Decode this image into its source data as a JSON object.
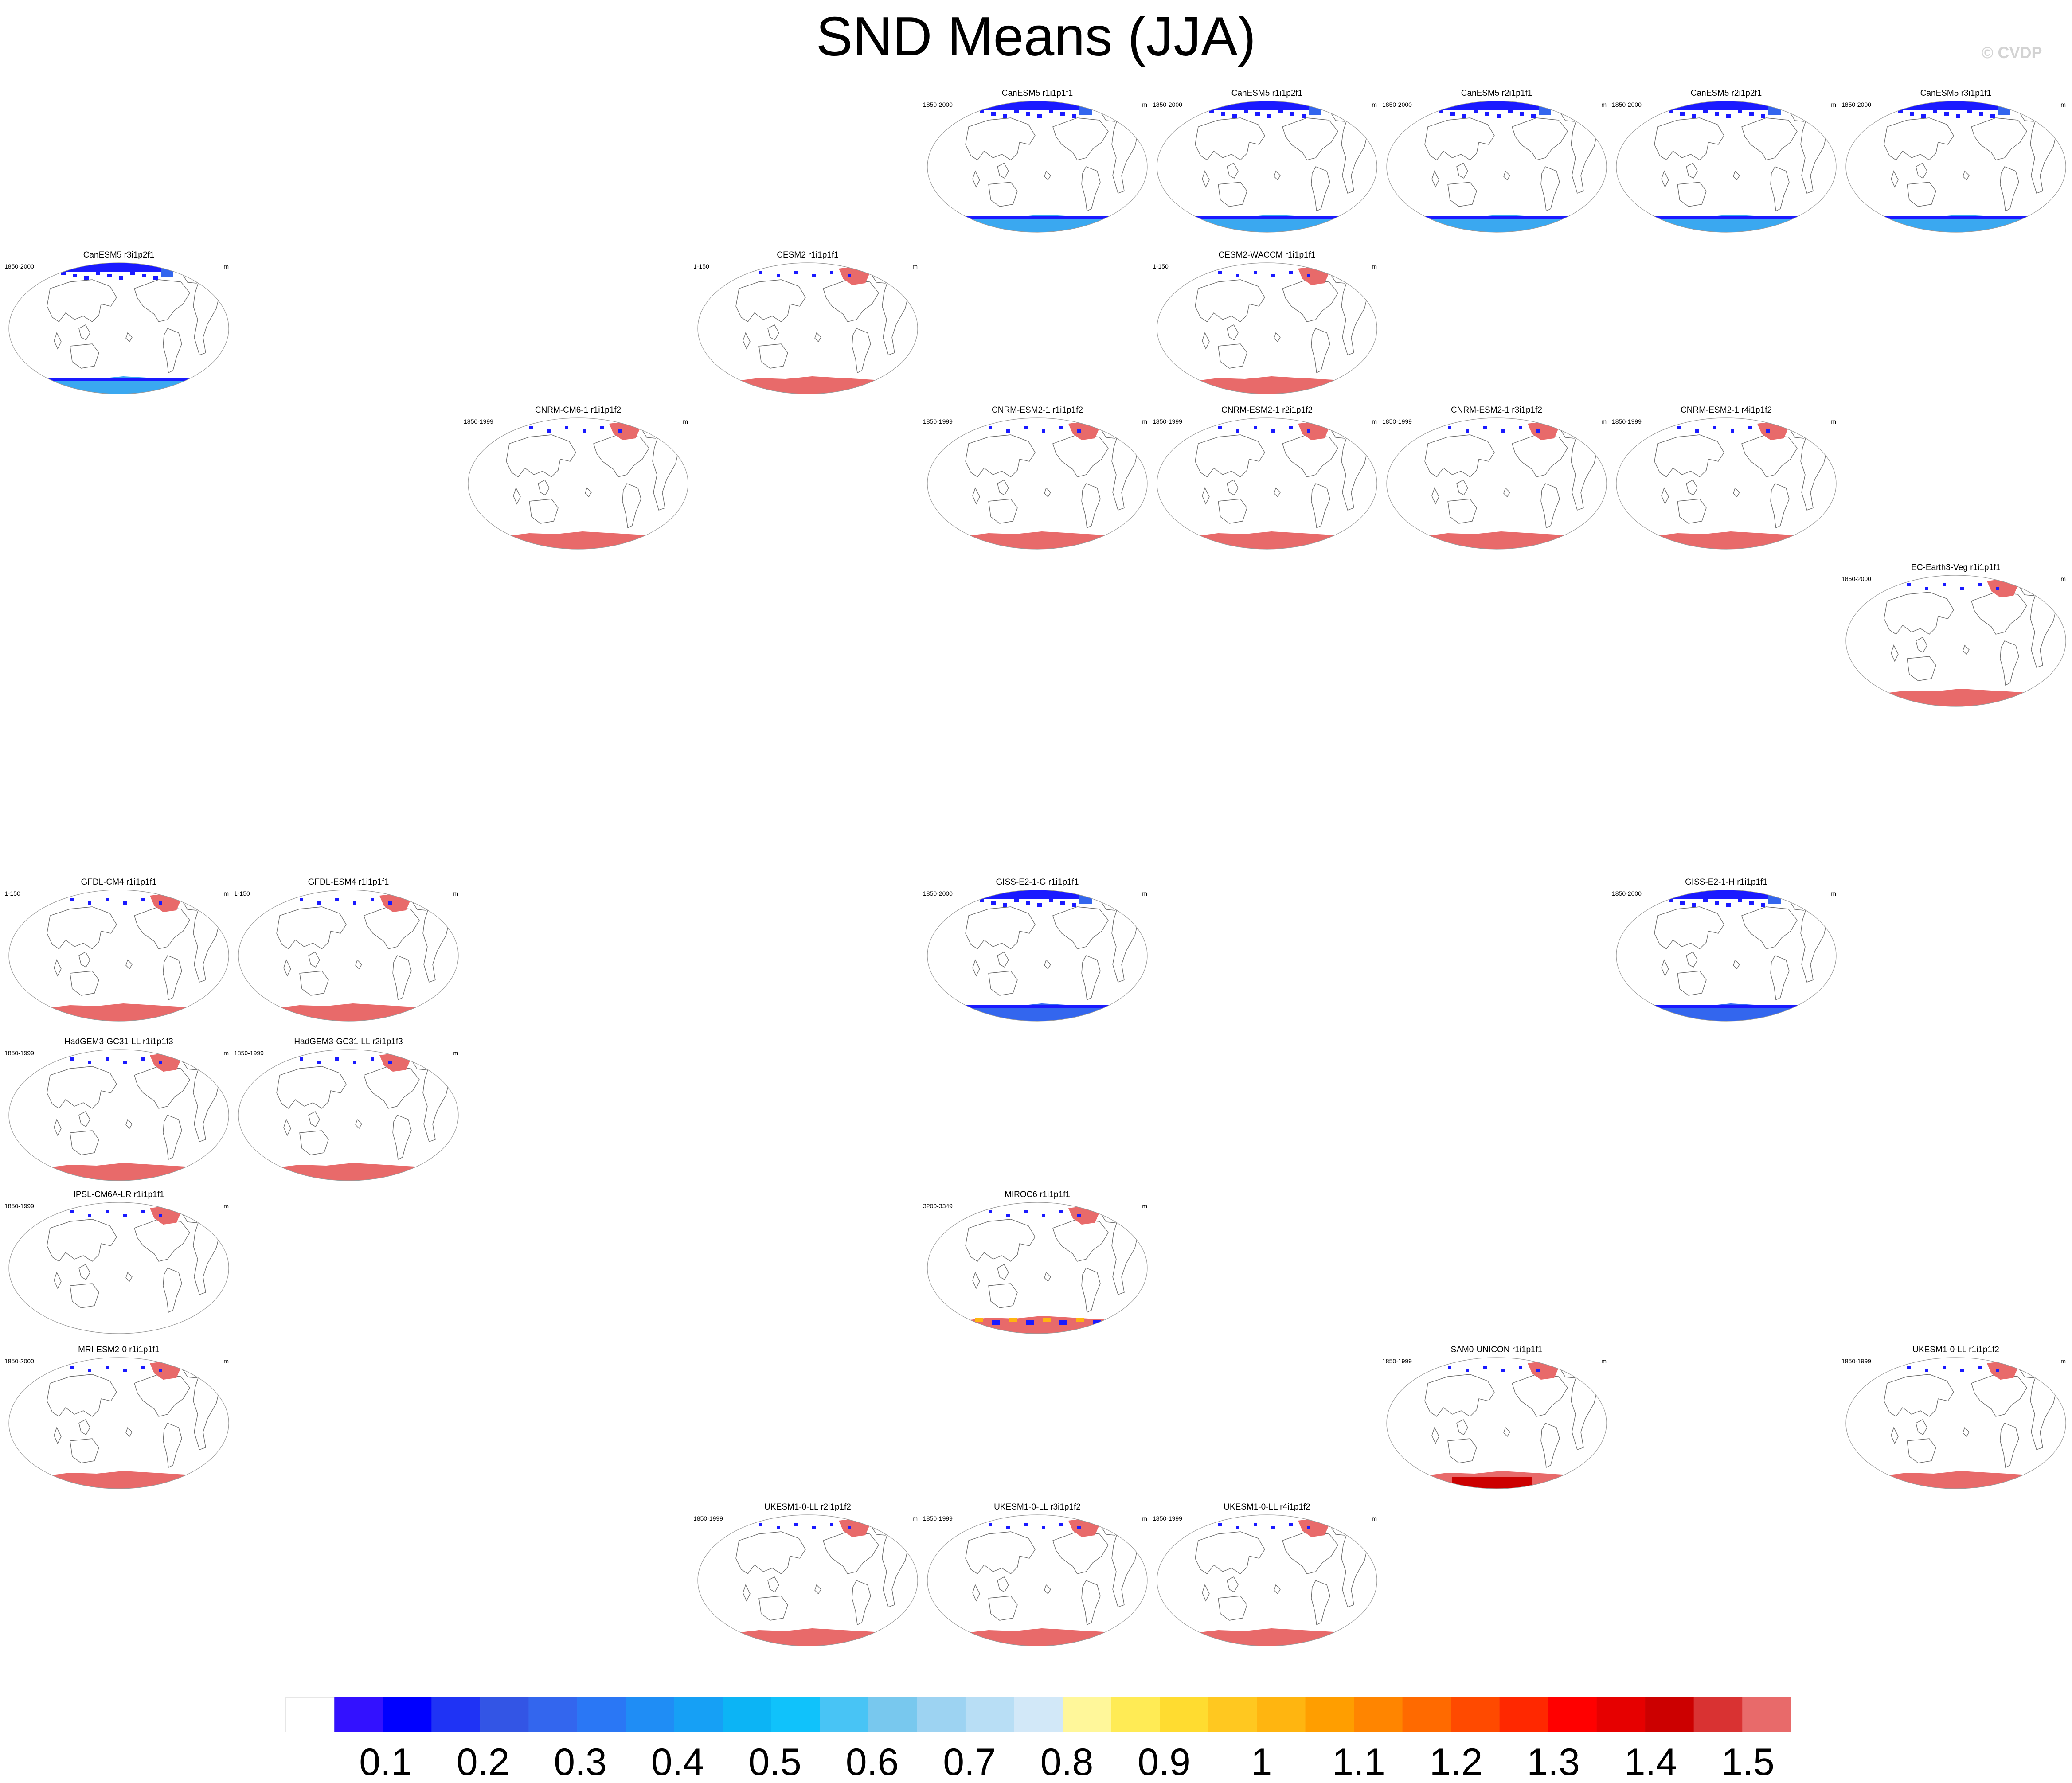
{
  "title": "SND Means (JJA)",
  "credit": "© CVDP",
  "units": "m",
  "colors": {
    "antarctic_high": "#e86a6a",
    "deep_blue": "#1a1aff",
    "light_blue": "#3aa8f0",
    "coastline": "#6e6e6e",
    "dark_red": "#cc0000"
  },
  "chart_data": {
    "type": "heatmap",
    "projection": "robinson",
    "title": "SND Means (JJA)",
    "units": "m",
    "colorbar": {
      "labels": [
        "0.1",
        "0.2",
        "0.3",
        "0.4",
        "0.5",
        "0.6",
        "0.7",
        "0.8",
        "0.9",
        "1",
        "1.1",
        "1.2",
        "1.3",
        "1.4",
        "1.5"
      ],
      "colors": [
        "#ffffff",
        "#3311ff",
        "#0000ff",
        "#1f33f5",
        "#3355e5",
        "#3366ee",
        "#2a77f5",
        "#1f8df5",
        "#16a0f5",
        "#0cb4f5",
        "#10c2fb",
        "#48c4f5",
        "#78c8ee",
        "#9dd3f2",
        "#b8def5",
        "#d2e8f8",
        "#fff79a",
        "#ffeb55",
        "#ffdc30",
        "#ffc820",
        "#ffb510",
        "#ff9e00",
        "#ff8500",
        "#ff6a00",
        "#ff4a00",
        "#ff2800",
        "#ff0000",
        "#e60000",
        "#cc0000",
        "#d93232",
        "#e86a6a"
      ]
    },
    "panels": [
      {
        "model": "CanESM5 r1i1p1f1",
        "period": "1850-2000",
        "col": 4,
        "row": 0,
        "arctic": "blue",
        "antarctic": "light_blue"
      },
      {
        "model": "CanESM5 r1i1p2f1",
        "period": "1850-2000",
        "col": 5,
        "row": 0,
        "arctic": "blue",
        "antarctic": "light_blue"
      },
      {
        "model": "CanESM5 r2i1p1f1",
        "period": "1850-2000",
        "col": 6,
        "row": 0,
        "arctic": "blue",
        "antarctic": "light_blue"
      },
      {
        "model": "CanESM5 r2i1p2f1",
        "period": "1850-2000",
        "col": 7,
        "row": 0,
        "arctic": "blue",
        "antarctic": "light_blue"
      },
      {
        "model": "CanESM5 r3i1p1f1",
        "period": "1850-2000",
        "col": 8,
        "row": 0,
        "arctic": "blue",
        "antarctic": "light_blue"
      },
      {
        "model": "CanESM5 r3i1p2f1",
        "period": "1850-2000",
        "col": 0,
        "row": 1,
        "arctic": "blue",
        "antarctic": "light_blue"
      },
      {
        "model": "CESM2 r1i1p1f1",
        "period": "1-150",
        "col": 3,
        "row": 1,
        "arctic": "red",
        "antarctic": "red"
      },
      {
        "model": "CESM2-WACCM r1i1p1f1",
        "period": "1-150",
        "col": 5,
        "row": 1,
        "arctic": "red",
        "antarctic": "red"
      },
      {
        "model": "CNRM-CM6-1 r1i1p1f2",
        "period": "1850-1999",
        "col": 2,
        "row": 2,
        "arctic": "red",
        "antarctic": "red"
      },
      {
        "model": "CNRM-ESM2-1 r1i1p1f2",
        "period": "1850-1999",
        "col": 4,
        "row": 2,
        "arctic": "red",
        "antarctic": "red"
      },
      {
        "model": "CNRM-ESM2-1 r2i1p1f2",
        "period": "1850-1999",
        "col": 5,
        "row": 2,
        "arctic": "red",
        "antarctic": "red"
      },
      {
        "model": "CNRM-ESM2-1 r3i1p1f2",
        "period": "1850-1999",
        "col": 6,
        "row": 2,
        "arctic": "red",
        "antarctic": "red"
      },
      {
        "model": "CNRM-ESM2-1 r4i1p1f2",
        "period": "1850-1999",
        "col": 7,
        "row": 2,
        "arctic": "red",
        "antarctic": "red"
      },
      {
        "model": "EC-Earth3-Veg r1i1p1f1",
        "period": "1850-2000",
        "col": 8,
        "row": 3,
        "arctic": "red",
        "antarctic": "red"
      },
      {
        "model": "GFDL-CM4 r1i1p1f1",
        "period": "1-150",
        "col": 0,
        "row": 5,
        "arctic": "red",
        "antarctic": "red"
      },
      {
        "model": "GFDL-ESM4 r1i1p1f1",
        "period": "1-150",
        "col": 1,
        "row": 5,
        "arctic": "red",
        "antarctic": "red"
      },
      {
        "model": "GISS-E2-1-G r1i1p1f1",
        "period": "1850-2000",
        "col": 4,
        "row": 5,
        "arctic": "blue",
        "antarctic": "blue"
      },
      {
        "model": "GISS-E2-1-H r1i1p1f1",
        "period": "1850-2000",
        "col": 7,
        "row": 5,
        "arctic": "blue",
        "antarctic": "blue"
      },
      {
        "model": "HadGEM3-GC31-LL r1i1p1f3",
        "period": "1850-1999",
        "col": 0,
        "row": 6,
        "arctic": "red",
        "antarctic": "red"
      },
      {
        "model": "HadGEM3-GC31-LL r2i1p1f3",
        "period": "1850-1999",
        "col": 1,
        "row": 6,
        "arctic": "red",
        "antarctic": "red"
      },
      {
        "model": "IPSL-CM6A-LR r1i1p1f1",
        "period": "1850-1999",
        "col": 0,
        "row": 7,
        "arctic": "red",
        "antarctic": "none"
      },
      {
        "model": "MIROC6 r1i1p1f1",
        "period": "3200-3349",
        "col": 4,
        "row": 7,
        "arctic": "red",
        "antarctic": "mixed"
      },
      {
        "model": "MRI-ESM2-0 r1i1p1f1",
        "period": "1850-2000",
        "col": 0,
        "row": 8,
        "arctic": "red",
        "antarctic": "red"
      },
      {
        "model": "SAM0-UNICON r1i1p1f1",
        "period": "1850-1999",
        "col": 6,
        "row": 8,
        "arctic": "red",
        "antarctic": "dark_red"
      },
      {
        "model": "UKESM1-0-LL r1i1p1f2",
        "period": "1850-1999",
        "col": 8,
        "row": 8,
        "arctic": "red",
        "antarctic": "red"
      },
      {
        "model": "UKESM1-0-LL r2i1p1f2",
        "period": "1850-1999",
        "col": 3,
        "row": 9,
        "arctic": "red",
        "antarctic": "red"
      },
      {
        "model": "UKESM1-0-LL r3i1p1f2",
        "period": "1850-1999",
        "col": 4,
        "row": 9,
        "arctic": "red",
        "antarctic": "red"
      },
      {
        "model": "UKESM1-0-LL r4i1p1f2",
        "period": "1850-1999",
        "col": 5,
        "row": 9,
        "arctic": "red",
        "antarctic": "red"
      }
    ]
  }
}
